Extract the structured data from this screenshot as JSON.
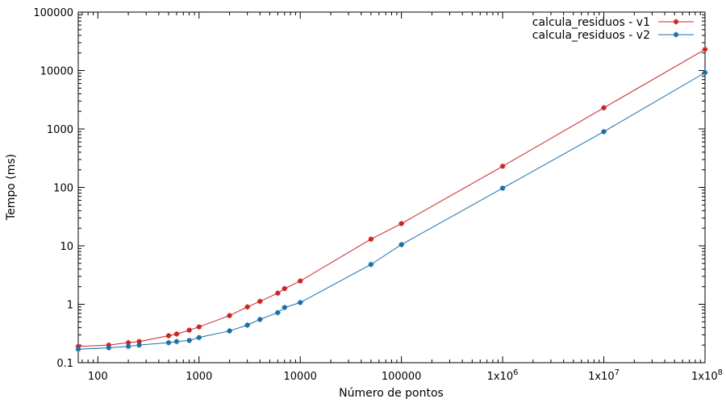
{
  "chart_data": {
    "type": "line",
    "xlabel": "Número de pontos",
    "ylabel": "Tempo (ms)",
    "xscale": "log",
    "yscale": "log",
    "xlim": [
      64,
      100000000
    ],
    "ylim": [
      0.1,
      100000
    ],
    "grid": false,
    "legend_position": "top-right",
    "x_ticks": [
      {
        "value": 100,
        "label": "100"
      },
      {
        "value": 1000,
        "label": "1000"
      },
      {
        "value": 10000,
        "label": "10000"
      },
      {
        "value": 100000,
        "label": "100000"
      },
      {
        "value": 1000000,
        "label": "1x10^6"
      },
      {
        "value": 10000000,
        "label": "1x10^7"
      },
      {
        "value": 100000000,
        "label": "1x10^8"
      }
    ],
    "y_ticks": [
      {
        "value": 0.1,
        "label": "0.1"
      },
      {
        "value": 1,
        "label": "1"
      },
      {
        "value": 10,
        "label": "10"
      },
      {
        "value": 100,
        "label": "100"
      },
      {
        "value": 1000,
        "label": "1000"
      },
      {
        "value": 10000,
        "label": "10000"
      },
      {
        "value": 100000,
        "label": "100000"
      }
    ],
    "series": [
      {
        "name": "calcula_residuos - v1",
        "color": "#cc2222",
        "points": [
          {
            "x": 64,
            "y": 0.19
          },
          {
            "x": 128,
            "y": 0.2
          },
          {
            "x": 200,
            "y": 0.22
          },
          {
            "x": 256,
            "y": 0.23
          },
          {
            "x": 500,
            "y": 0.29
          },
          {
            "x": 600,
            "y": 0.31
          },
          {
            "x": 800,
            "y": 0.36
          },
          {
            "x": 1000,
            "y": 0.41
          },
          {
            "x": 2000,
            "y": 0.64
          },
          {
            "x": 3000,
            "y": 0.9
          },
          {
            "x": 4000,
            "y": 1.12
          },
          {
            "x": 6000,
            "y": 1.55
          },
          {
            "x": 7000,
            "y": 1.85
          },
          {
            "x": 10000,
            "y": 2.5
          },
          {
            "x": 50000,
            "y": 13
          },
          {
            "x": 100000,
            "y": 24
          },
          {
            "x": 1000000,
            "y": 230
          },
          {
            "x": 10000000,
            "y": 2300
          },
          {
            "x": 100000000,
            "y": 23000
          }
        ]
      },
      {
        "name": "calcula_residuos - v2",
        "color": "#1a6fa8",
        "points": [
          {
            "x": 64,
            "y": 0.17
          },
          {
            "x": 128,
            "y": 0.18
          },
          {
            "x": 200,
            "y": 0.19
          },
          {
            "x": 256,
            "y": 0.2
          },
          {
            "x": 500,
            "y": 0.22
          },
          {
            "x": 600,
            "y": 0.23
          },
          {
            "x": 800,
            "y": 0.24
          },
          {
            "x": 1000,
            "y": 0.27
          },
          {
            "x": 2000,
            "y": 0.35
          },
          {
            "x": 3000,
            "y": 0.44
          },
          {
            "x": 4000,
            "y": 0.55
          },
          {
            "x": 6000,
            "y": 0.72
          },
          {
            "x": 7000,
            "y": 0.88
          },
          {
            "x": 10000,
            "y": 1.07
          },
          {
            "x": 50000,
            "y": 4.8
          },
          {
            "x": 100000,
            "y": 10.5
          },
          {
            "x": 1000000,
            "y": 97
          },
          {
            "x": 10000000,
            "y": 900
          },
          {
            "x": 100000000,
            "y": 9200
          }
        ]
      }
    ]
  }
}
